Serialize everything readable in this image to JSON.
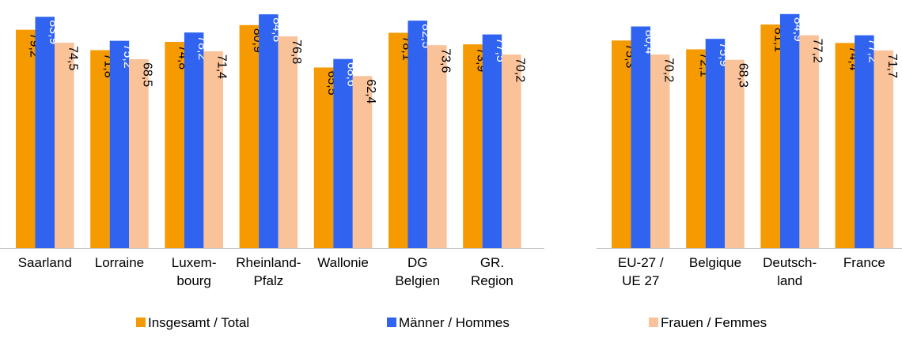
{
  "chart_data": {
    "type": "bar",
    "ylim": [
      0,
      90
    ],
    "grid": false,
    "legend_position": "bottom",
    "groups": [
      {
        "categories": [
          "Saarland",
          "Lorraine",
          "Luxem-\nbourg",
          "Rheinland-\nPfalz",
          "Wallonie",
          "DG\nBelgien",
          "GR.\nRegion"
        ]
      },
      {
        "categories": [
          "EU-27 /\nUE 27",
          "Belgique",
          "Deutsch-\nland",
          "France"
        ]
      }
    ],
    "series": [
      {
        "name": "Insgesamt / Total",
        "color": "#f59a00",
        "label_color": "#000000",
        "values": [
          79.2,
          71.8,
          74.8,
          80.9,
          65.5,
          78.1,
          73.9,
          75.3,
          72.1,
          81.1,
          74.4
        ],
        "labels": [
          "79,2",
          "71,8",
          "74,8",
          "80,9",
          "65,5",
          "78,1",
          "73,9",
          "75,3",
          "72,1",
          "81,1",
          "74,4"
        ]
      },
      {
        "name": "Männer / Hommes",
        "color": "#2f63f0",
        "label_color": "#ffffff",
        "values": [
          83.9,
          75.2,
          78.2,
          84.8,
          68.6,
          82.5,
          77.5,
          80.4,
          75.9,
          84.9,
          77.2
        ],
        "labels": [
          "83,9",
          "75,2",
          "78,2",
          "84,8",
          "68,6",
          "82,5",
          "77,5",
          "80,4",
          "75,9",
          "84,9",
          "77,2"
        ]
      },
      {
        "name": "Frauen / Femmes",
        "color": "#f9c299",
        "label_color": "#000000",
        "values": [
          74.5,
          68.5,
          71.4,
          76.8,
          62.4,
          73.6,
          70.2,
          70.2,
          68.3,
          77.2,
          71.7
        ],
        "labels": [
          "74,5",
          "68,5",
          "71,4",
          "76,8",
          "62,4",
          "73,6",
          "70,2",
          "70,2",
          "68,3",
          "77,2",
          "71,7"
        ]
      }
    ]
  }
}
